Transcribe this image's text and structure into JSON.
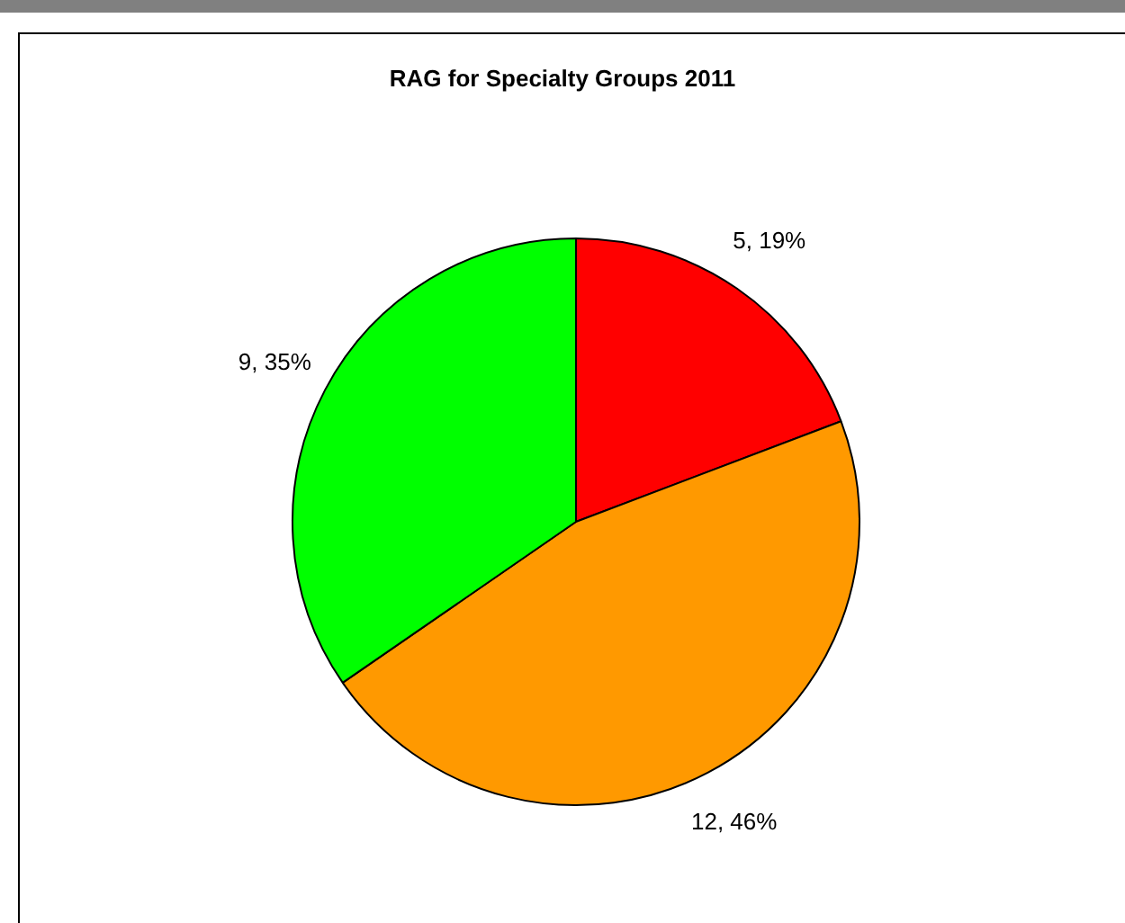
{
  "chart_data": {
    "type": "pie",
    "title": "RAG for Specialty Groups 2011",
    "categories": [
      null,
      null,
      null
    ],
    "values": [
      5,
      12,
      9
    ],
    "colors": [
      "#ff0000",
      "#ff9900",
      "#00ff00"
    ],
    "value_labels": [
      "5, 19%",
      "12, 46%",
      "9, 35%"
    ],
    "legend": false
  }
}
